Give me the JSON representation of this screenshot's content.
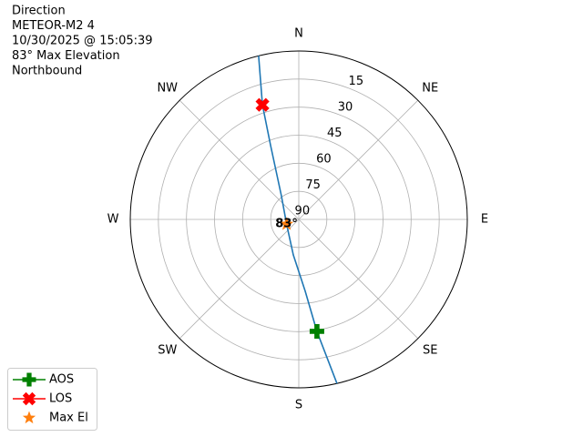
{
  "chart_data": {
    "type": "polar",
    "info_lines": [
      "Direction",
      "METEOR-M2 4",
      "10/30/2025 @ 15:05:39",
      "83° Max Elevation",
      "Northbound"
    ],
    "rlim": [
      90,
      0
    ],
    "rticks": [
      90,
      75,
      60,
      45,
      30,
      15
    ],
    "angle_ticks": [
      {
        "value": 0,
        "label": "N"
      },
      {
        "value": 45,
        "label": "NE"
      },
      {
        "value": 90,
        "label": "E"
      },
      {
        "value": 135,
        "label": "SE"
      },
      {
        "value": 180,
        "label": "S"
      },
      {
        "value": 225,
        "label": "SW"
      },
      {
        "value": 270,
        "label": "W"
      },
      {
        "value": 315,
        "label": "NW"
      }
    ],
    "grid": true,
    "track": {
      "color": "#1f77b4",
      "az": [
        166.9,
        170.8,
        174.9,
        188.7,
        249,
        323.8,
        339.1,
        342.4,
        346.2
      ],
      "el": [
        0,
        29.4,
        51.4,
        70.8,
        83,
        74.3,
        47.8,
        25.8,
        0
      ]
    },
    "markers": [
      {
        "name": "AOS",
        "color": "#008000",
        "marker": "plus",
        "legend_line": true,
        "az": 170.8,
        "el": 29.4
      },
      {
        "name": "LOS",
        "color": "#ff0000",
        "marker": "x",
        "legend_line": true,
        "az": 342.4,
        "el": 25.8
      },
      {
        "name": "Max El",
        "color": "#ff7f0e",
        "marker": "star",
        "legend_line": false,
        "az": 249,
        "el": 83,
        "value_label": "83°"
      }
    ],
    "legend": "lower left"
  }
}
